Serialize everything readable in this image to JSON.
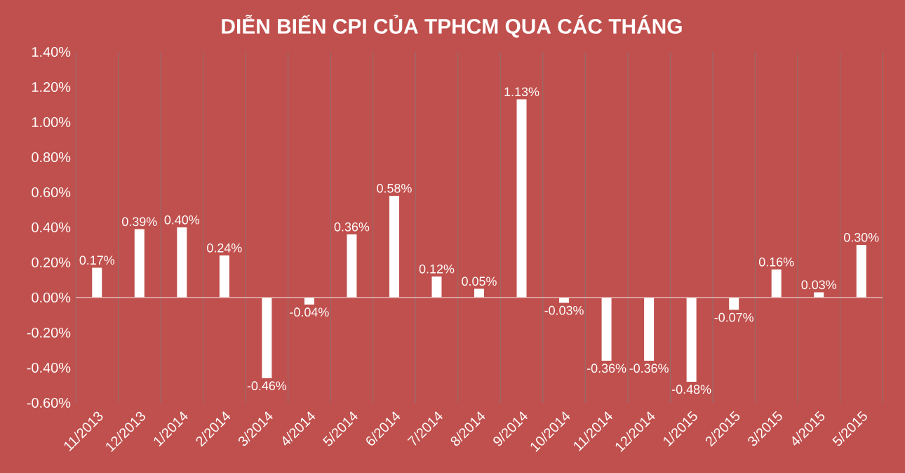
{
  "chart_data": {
    "type": "bar",
    "title": "DIỄN BIẾN CPI CỦA TPHCM QUA CÁC THÁNG",
    "categories": [
      "11/2013",
      "12/2013",
      "1/2014",
      "2/2014",
      "3/2014",
      "4/2014",
      "5/2014",
      "6/2014",
      "7/2014",
      "8/2014",
      "9/2014",
      "10/2014",
      "11/2014",
      "12/2014",
      "1/2015",
      "2/2015",
      "3/2015",
      "4/2015",
      "5/2015"
    ],
    "values": [
      0.17,
      0.39,
      0.4,
      0.24,
      -0.46,
      -0.04,
      0.36,
      0.58,
      0.12,
      0.05,
      1.13,
      -0.03,
      -0.36,
      -0.36,
      -0.48,
      -0.07,
      0.16,
      0.03,
      0.3
    ],
    "value_labels": [
      "0.17%",
      "0.39%",
      "0.40%",
      "0.24%",
      "-0.46%",
      "-0.04%",
      "0.36%",
      "0.58%",
      "0.12%",
      "0.05%",
      "1.13%",
      "-0.03%",
      "-0.36%",
      "-0.36%",
      "-0.48%",
      "-0.07%",
      "0.16%",
      "0.03%",
      "0.30%"
    ],
    "color": "#ffffff",
    "ylim": [
      -0.6,
      1.4
    ],
    "yticks": [
      {
        "value": -0.6,
        "label": "-0.60%"
      },
      {
        "value": -0.4,
        "label": "-0.40%"
      },
      {
        "value": -0.2,
        "label": "-0.20%"
      },
      {
        "value": 0,
        "label": "0.00%"
      },
      {
        "value": 0.2,
        "label": "0.20%"
      },
      {
        "value": 0.4,
        "label": "0.40%"
      },
      {
        "value": 0.6,
        "label": "0.60%"
      },
      {
        "value": 0.8,
        "label": "0.80%"
      },
      {
        "value": 1.0,
        "label": "1.00%"
      },
      {
        "value": 1.2,
        "label": "1.20%"
      },
      {
        "value": 1.4,
        "label": "1.40%"
      }
    ],
    "ref_lines": [
      {
        "axis": "y",
        "value": 0,
        "color": "#e6b9b8"
      }
    ],
    "grid": "x"
  }
}
